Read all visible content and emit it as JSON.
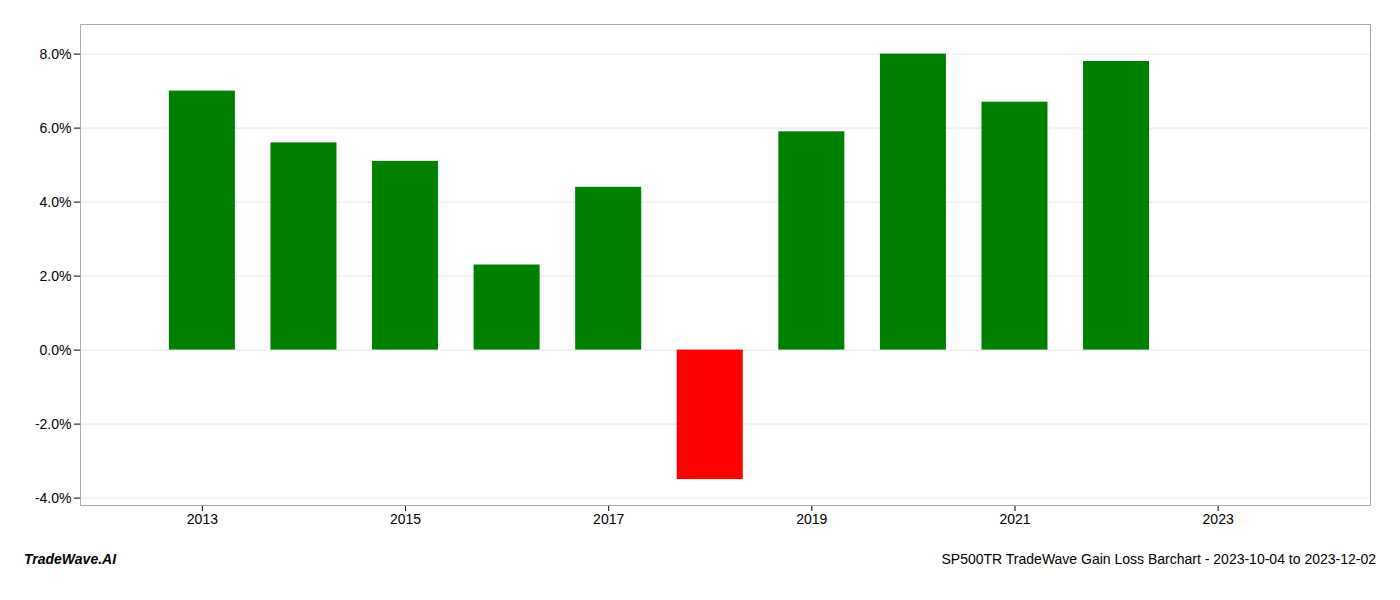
{
  "chart_data": {
    "type": "bar",
    "title": "SP500TR TradeWave Gain Loss Barchart - 2023-10-04 to 2023-12-02",
    "annotations": [
      "TradeWave.AI"
    ],
    "x": [
      2013,
      2014,
      2015,
      2016,
      2017,
      2018,
      2019,
      2020,
      2021,
      2022
    ],
    "values": [
      0.07,
      0.056,
      0.051,
      0.023,
      0.044,
      -0.035,
      0.059,
      0.08,
      0.067,
      0.078
    ],
    "colors": [
      "#008000",
      "#008000",
      "#008000",
      "#008000",
      "#008000",
      "#ff0000",
      "#008000",
      "#008000",
      "#008000",
      "#008000"
    ],
    "xlim": [
      2011.8,
      2024.5
    ],
    "xticks": [
      2013,
      2015,
      2017,
      2019,
      2021,
      2023
    ],
    "ylim": [
      -0.042,
      0.088
    ],
    "yticks": [
      {
        "value": -0.04,
        "label": "-4.0%"
      },
      {
        "value": -0.02,
        "label": "-2.0%"
      },
      {
        "value": 0.0,
        "label": "0.0%"
      },
      {
        "value": 0.02,
        "label": "2.0%"
      },
      {
        "value": 0.04,
        "label": "4.0%"
      },
      {
        "value": 0.06,
        "label": "6.0%"
      },
      {
        "value": 0.08,
        "label": "8.0%"
      }
    ],
    "grid": true
  }
}
